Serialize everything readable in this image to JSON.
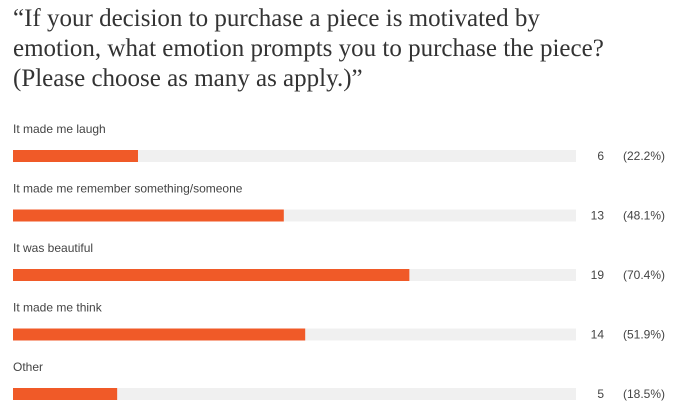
{
  "chart_data": {
    "type": "bar",
    "title": "“If your decision to purchase a piece is motivated by emotion, what emotion prompts you to purchase the piece? (Please choose as many as apply.)”",
    "categories": [
      "It made me laugh",
      "It made me remember something/someone",
      "It was beautiful",
      "It made me think",
      "Other"
    ],
    "values": [
      6,
      13,
      19,
      14,
      5
    ],
    "percent_values": [
      22.2,
      48.1,
      70.4,
      51.9,
      18.5
    ],
    "percent_labels": [
      "(22.2%)",
      "(48.1%)",
      "(70.4%)",
      "(51.9%)",
      "(18.5%)"
    ],
    "xlim": [
      0,
      100
    ],
    "color": "#f05a28",
    "track_color": "#f0f0f0"
  }
}
